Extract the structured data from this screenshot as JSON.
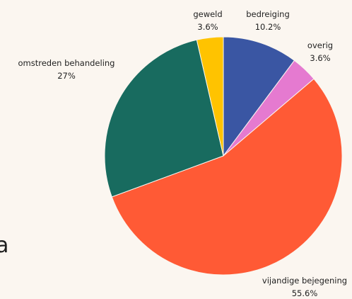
{
  "chart_data": {
    "type": "pie",
    "slices": [
      {
        "label": "bedreiging",
        "value": 10.2,
        "value_label": "10.2%",
        "color": "#3a56a3"
      },
      {
        "label": "overig",
        "value": 3.6,
        "value_label": "3.6%",
        "color": "#e57ad0"
      },
      {
        "label": "vijandige bejegening",
        "value": 55.6,
        "value_label": "55.6%",
        "color": "#ff5a35"
      },
      {
        "label": "omstreden behandeling",
        "value": 27,
        "value_label": "27%",
        "color": "#186b5f"
      },
      {
        "label": "geweld",
        "value": 3.6,
        "value_label": "3.6%",
        "color": "#ffc300"
      }
    ],
    "start": "top",
    "direction": "clockwise"
  },
  "stray_text": "a"
}
